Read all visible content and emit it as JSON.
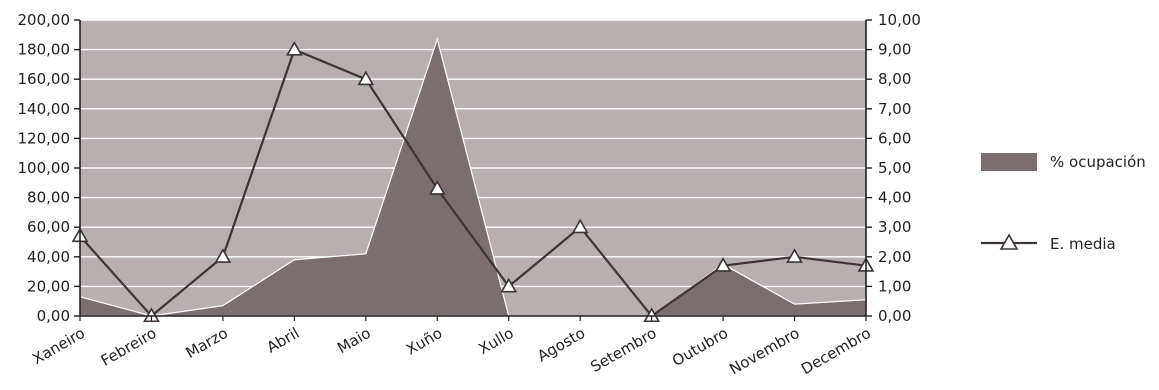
{
  "chart_data": {
    "type": "area+line",
    "categories": [
      "Xaneiro",
      "Febreiro",
      "Marzo",
      "Abril",
      "Maio",
      "Xuño",
      "Xullo",
      "Agosto",
      "Setembro",
      "Outubro",
      "Novembro",
      "Decembro"
    ],
    "series": [
      {
        "name": "% ocupación",
        "type": "area",
        "axis": "left",
        "color": "#7a6e6e",
        "values": [
          13,
          0,
          7,
          38,
          42,
          187,
          0,
          0,
          0,
          35,
          8,
          11
        ]
      },
      {
        "name": "E. media",
        "type": "line",
        "axis": "right",
        "color": "#3d3535",
        "marker": "triangle",
        "values": [
          2.7,
          0,
          2.0,
          9.0,
          8.0,
          4.3,
          1.0,
          3.0,
          0,
          1.7,
          2.0,
          1.7
        ]
      }
    ],
    "y_left": {
      "ylim": [
        0,
        200
      ],
      "ticks": [
        "0,00",
        "20,00",
        "40,00",
        "60,00",
        "80,00",
        "100,00",
        "120,00",
        "140,00",
        "160,00",
        "180,00",
        "200,00"
      ]
    },
    "y_right": {
      "ylim": [
        0,
        10
      ],
      "ticks": [
        "0,00",
        "1,00",
        "2,00",
        "3,00",
        "4,00",
        "5,00",
        "6,00",
        "7,00",
        "8,00",
        "9,00",
        "10,00"
      ]
    },
    "plot_background": "#b8b0b0",
    "grid": true,
    "grid_color": "#ffffff",
    "legend_position": "right"
  }
}
